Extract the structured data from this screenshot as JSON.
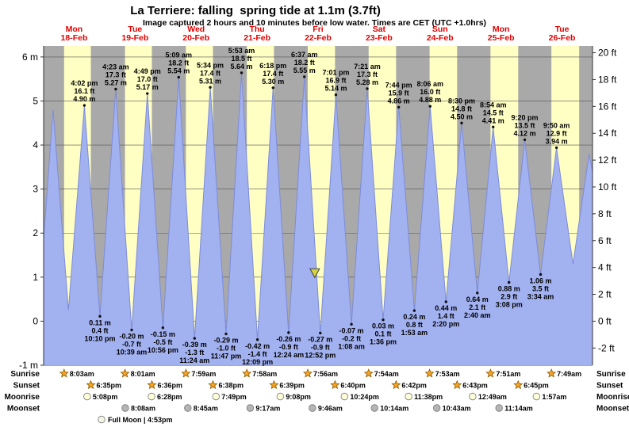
{
  "title": "La Terriere: falling  spring tide at 1.1m (3.7ft)",
  "subtitle": "Image captured 2 hours and 10 minutes before low water. Times are CET (UTC +1.0hrs)",
  "colors": {
    "day_band": "#ffffc4",
    "night_band": "#a9a9a9",
    "tide_fill": "#a2b1f0",
    "tide_stroke": "#7d8cd8",
    "grid": "#555555",
    "axis": "#333333",
    "day_label": "#e00000",
    "text": "#000000",
    "marker_fill": "#d6d23e",
    "marker_stroke": "#444444",
    "sun_fill": "#f5a427",
    "sun_stroke": "#8a5a00",
    "moon_light": "#ffffd9",
    "moon_dark": "#b5b5b5",
    "moon_stroke": "#777777"
  },
  "days": [
    {
      "name": "Mon",
      "date": "18-Feb"
    },
    {
      "name": "Tue",
      "date": "19-Feb"
    },
    {
      "name": "Wed",
      "date": "20-Feb"
    },
    {
      "name": "Thu",
      "date": "21-Feb"
    },
    {
      "name": "Fri",
      "date": "22-Feb"
    },
    {
      "name": "Sat",
      "date": "23-Feb"
    },
    {
      "name": "Sun",
      "date": "24-Feb"
    },
    {
      "name": "Mon",
      "date": "25-Feb"
    },
    {
      "name": "Tue",
      "date": "26-Feb"
    }
  ],
  "chart_data": {
    "type": "area",
    "title": "La Terriere tide heights, 18-Feb to 26-Feb",
    "num_days": 9,
    "ylim_m": [
      -1,
      6.25
    ],
    "y_unit_left": "m",
    "y_unit_right": "ft",
    "y_axis_left": [
      {
        "v": 6,
        "label": "6 m"
      },
      {
        "v": 5,
        "label": "5"
      },
      {
        "v": 4,
        "label": "4"
      },
      {
        "v": 3,
        "label": "3"
      },
      {
        "v": 2,
        "label": "2"
      },
      {
        "v": 1,
        "label": "1"
      },
      {
        "v": 0,
        "label": "0"
      },
      {
        "v": -1,
        "label": "-1 m"
      }
    ],
    "y_axis_right": [
      {
        "v": 20,
        "label": "20 ft"
      },
      {
        "v": 18,
        "label": "18 ft"
      },
      {
        "v": 16,
        "label": "16 ft"
      },
      {
        "v": 14,
        "label": "14 ft"
      },
      {
        "v": 12,
        "label": "12 ft"
      },
      {
        "v": 10,
        "label": "10 ft"
      },
      {
        "v": 8,
        "label": "8 ft"
      },
      {
        "v": 6,
        "label": "6 ft"
      },
      {
        "v": 4,
        "label": "4 ft"
      },
      {
        "v": 2,
        "label": "2 ft"
      },
      {
        "v": 0,
        "label": "0 ft"
      },
      {
        "v": -2,
        "label": "-2 ft"
      }
    ],
    "events": [
      {
        "d": 0,
        "kind": "high",
        "time": "4:02 pm",
        "ft": "16.1",
        "m": "4.90"
      },
      {
        "d": 0,
        "kind": "low",
        "time": "10:10 pm",
        "m": "0.11",
        "ft": "0.4"
      },
      {
        "d": 1,
        "kind": "high",
        "time": "4:23 am",
        "ft": "17.3",
        "m": "5.27"
      },
      {
        "d": 1,
        "kind": "low",
        "time": "10:39 am",
        "m": "-0.20",
        "ft": "-0.7"
      },
      {
        "d": 1,
        "kind": "high",
        "time": "4:49 pm",
        "ft": "17.0",
        "m": "5.17"
      },
      {
        "d": 1,
        "kind": "low",
        "time": "10:56 pm",
        "m": "-0.15",
        "ft": "-0.5"
      },
      {
        "d": 2,
        "kind": "high",
        "time": "5:09 am",
        "ft": "18.2",
        "m": "5.54"
      },
      {
        "d": 2,
        "kind": "low",
        "time": "11:24 am",
        "m": "-0.39",
        "ft": "-1.3"
      },
      {
        "d": 2,
        "kind": "high",
        "time": "5:34 pm",
        "ft": "17.4",
        "m": "5.31"
      },
      {
        "d": 2,
        "kind": "low",
        "time": "11:47 pm",
        "m": "-0.29",
        "ft": "-1.0"
      },
      {
        "d": 3,
        "kind": "high",
        "time": "5:53 am",
        "ft": "18.5",
        "m": "5.64"
      },
      {
        "d": 3,
        "kind": "low",
        "time": "12:09 pm",
        "m": "-0.42",
        "ft": "-1.4"
      },
      {
        "d": 3,
        "kind": "high",
        "time": "6:18 pm",
        "ft": "17.4",
        "m": "5.30"
      },
      {
        "d": 4,
        "kind": "low",
        "time": "12:24 am",
        "m": "-0.26",
        "ft": "-0.9"
      },
      {
        "d": 4,
        "kind": "high",
        "time": "6:37 am",
        "ft": "18.2",
        "m": "5.55"
      },
      {
        "d": 4,
        "kind": "low",
        "time": "12:52 pm",
        "m": "-0.27",
        "ft": "-0.9"
      },
      {
        "d": 4,
        "kind": "high",
        "time": "7:01 pm",
        "ft": "16.9",
        "m": "5.14"
      },
      {
        "d": 5,
        "kind": "low",
        "time": "1:08 am",
        "m": "-0.07",
        "ft": "-0.2"
      },
      {
        "d": 5,
        "kind": "high",
        "time": "7:21 am",
        "ft": "17.3",
        "m": "5.28"
      },
      {
        "d": 5,
        "kind": "low",
        "time": "1:36 pm",
        "m": "0.03",
        "ft": "0.1"
      },
      {
        "d": 5,
        "kind": "high",
        "time": "7:44 pm",
        "ft": "15.9",
        "m": "4.86"
      },
      {
        "d": 6,
        "kind": "low",
        "time": "1:53 am",
        "m": "0.24",
        "ft": "0.8"
      },
      {
        "d": 6,
        "kind": "high",
        "time": "8:06 am",
        "ft": "16.0",
        "m": "4.88"
      },
      {
        "d": 6,
        "kind": "low",
        "time": "2:20 pm",
        "m": "0.44",
        "ft": "1.4"
      },
      {
        "d": 6,
        "kind": "high",
        "time": "8:30 pm",
        "ft": "14.8",
        "m": "4.50"
      },
      {
        "d": 7,
        "kind": "low",
        "time": "2:40 am",
        "m": "0.64",
        "ft": "2.1"
      },
      {
        "d": 7,
        "kind": "high",
        "time": "8:54 am",
        "ft": "14.5",
        "m": "4.41"
      },
      {
        "d": 7,
        "kind": "low",
        "time": "3:08 pm",
        "m": "0.88",
        "ft": "2.9"
      },
      {
        "d": 7,
        "kind": "high",
        "time": "9:20 pm",
        "ft": "13.5",
        "m": "4.12"
      },
      {
        "d": 8,
        "kind": "low",
        "time": "3:34 am",
        "m": "1.06",
        "ft": "3.5"
      },
      {
        "d": 8,
        "kind": "high",
        "time": "9:50 am",
        "ft": "12.9",
        "m": "3.94"
      }
    ],
    "edge_shape_points_estimated": [
      {
        "d": 0,
        "time": "12:02 am",
        "m": "1.9"
      },
      {
        "d": 0,
        "time": "3:42 am",
        "m": "4.80"
      },
      {
        "d": 0,
        "time": "9:47 am",
        "m": "0.25"
      },
      {
        "d": 8,
        "time": "4:20 pm",
        "m": "1.30"
      },
      {
        "d": 8,
        "time": "10:40 pm",
        "m": "3.80"
      },
      {
        "d": 8,
        "time": "11:58 pm",
        "m": "3.40"
      }
    ],
    "current_tide_marker": {
      "d": 4,
      "time": "10:42 am",
      "m": "1.1"
    }
  },
  "astro": {
    "rows": [
      {
        "id": "sunrise",
        "label": "Sunrise",
        "icon": "sun",
        "items": [
          {
            "d": 0,
            "time": "8:03am"
          },
          {
            "d": 1,
            "time": "8:01am"
          },
          {
            "d": 2,
            "time": "7:59am"
          },
          {
            "d": 3,
            "time": "7:58am"
          },
          {
            "d": 4,
            "time": "7:56am"
          },
          {
            "d": 5,
            "time": "7:54am"
          },
          {
            "d": 6,
            "time": "7:53am"
          },
          {
            "d": 7,
            "time": "7:51am"
          },
          {
            "d": 8,
            "time": "7:49am"
          }
        ]
      },
      {
        "id": "sunset",
        "label": "Sunset",
        "icon": "sun",
        "items": [
          {
            "d": 0,
            "time": "6:35pm"
          },
          {
            "d": 1,
            "time": "6:36pm"
          },
          {
            "d": 2,
            "time": "6:38pm"
          },
          {
            "d": 3,
            "time": "6:39pm"
          },
          {
            "d": 4,
            "time": "6:40pm"
          },
          {
            "d": 5,
            "time": "6:42pm"
          },
          {
            "d": 6,
            "time": "6:43pm"
          },
          {
            "d": 7,
            "time": "6:45pm"
          }
        ]
      },
      {
        "id": "moonrise",
        "label": "Moonrise",
        "icon": "moon-light",
        "items": [
          {
            "d": 0,
            "time": "5:08pm"
          },
          {
            "d": 1,
            "time": "6:28pm"
          },
          {
            "d": 2,
            "time": "7:49pm"
          },
          {
            "d": 3,
            "time": "9:08pm"
          },
          {
            "d": 4,
            "time": "10:24pm"
          },
          {
            "d": 5,
            "time": "11:38pm"
          },
          {
            "d": 7,
            "time": "12:49am"
          },
          {
            "d": 8,
            "time": "1:57am"
          }
        ]
      },
      {
        "id": "moonset",
        "label": "Moonset",
        "icon": "moon-dark",
        "items": [
          {
            "d": 1,
            "time": "8:08am"
          },
          {
            "d": 2,
            "time": "8:45am"
          },
          {
            "d": 3,
            "time": "9:17am"
          },
          {
            "d": 4,
            "time": "9:46am"
          },
          {
            "d": 5,
            "time": "10:14am"
          },
          {
            "d": 6,
            "time": "10:43am"
          },
          {
            "d": 7,
            "time": "11:14am"
          }
        ]
      }
    ],
    "full_moon": {
      "label": "Full Moon",
      "time": "4:53pm",
      "d": 1
    }
  }
}
